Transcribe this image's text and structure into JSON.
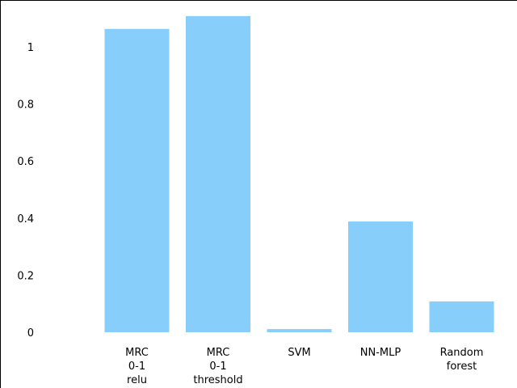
{
  "chart_data": {
    "type": "bar",
    "title": "",
    "xlabel": "",
    "ylabel": "",
    "categories": [
      [
        "MRC",
        "0-1",
        "relu"
      ],
      [
        "MRC",
        "0-1",
        "threshold"
      ],
      [
        "SVM"
      ],
      [
        "NN-MLP"
      ],
      [
        "Random",
        "forest"
      ]
    ],
    "values": [
      1.063,
      1.108,
      0.011,
      0.388,
      0.108
    ],
    "ylim": [
      0,
      1.18
    ],
    "yticks": [
      0,
      0.2,
      0.4,
      0.6,
      0.8,
      1
    ],
    "ytick_labels": [
      "0",
      "0.2",
      "0.4",
      "0.6",
      "0.8",
      "1"
    ],
    "bar_color": "#87cefa",
    "grid": false,
    "legend": "none"
  }
}
